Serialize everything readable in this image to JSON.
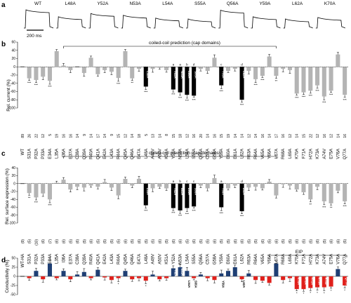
{
  "panel_a": {
    "label": "a",
    "traces": [
      "WT",
      "L48A",
      "Y52A",
      "N53A",
      "L54A",
      "S55A",
      "Q56A",
      "Y59A",
      "L62A",
      "K70A"
    ],
    "scale_label": "200 ms"
  },
  "panel_b": {
    "label": "b",
    "bracket_label": "coiled-coil prediction (cap domains)",
    "ylabel": "Rel. current (%)"
  },
  "panel_c": {
    "label": "c",
    "bracket_label": "coiled-coil prediction (cap domains)",
    "ylabel": "Rel. surface expression (%)"
  },
  "panel_d": {
    "label": "d",
    "bracket_label": "EIP",
    "ylabel": "Conductivity (%)"
  },
  "chart_data": [
    {
      "panel": "b",
      "type": "bar",
      "categories": [
        "WT",
        "S31A",
        "P32A",
        "P33A",
        "E34A",
        "L35A",
        "I36A",
        "E37A",
        "C38A",
        "Q39A",
        "R40A",
        "Q41A",
        "E42A",
        "L43A",
        "R44A",
        "Q45A",
        "Q46A",
        "E47A",
        "L48A",
        "A49V",
        "A50V",
        "K51A",
        "Y52A",
        "N53A",
        "L54A",
        "S55A",
        "Q56A",
        "C57A",
        "G58A",
        "Y59A",
        "E60A",
        "E61A",
        "L62A",
        "R63A",
        "R64A",
        "V65A",
        "Y66A",
        "L67A",
        "R68A",
        "L69A",
        "K70A",
        "F71A",
        "H72A",
        "K73A",
        "A74V",
        "E75A",
        "V76A",
        "Q77A"
      ],
      "values": [
        0,
        -28,
        -32,
        -24,
        -34,
        38,
        3,
        -8,
        0,
        -15,
        22,
        -18,
        -8,
        -12,
        -27,
        38,
        -28,
        -5,
        -48,
        -5,
        -2,
        -8,
        -55,
        -62,
        -68,
        -70,
        -5,
        -10,
        22,
        -45,
        -10,
        -5,
        -80,
        -10,
        -30,
        -22,
        25,
        -22,
        -5,
        -8,
        -65,
        -62,
        -58,
        -45,
        -72,
        -58,
        30,
        -68
      ],
      "highlighted": [
        "L48A",
        "Y52A",
        "N53A",
        "L54A",
        "S55A",
        "Y59A",
        "L62A"
      ],
      "letters": {
        "Y52A": "a",
        "N53A": "a",
        "L54A": "b",
        "S55A": "d",
        "Y59A": "c",
        "L62A": "d"
      },
      "significance": {
        "S31A": "***",
        "P32A": "***",
        "E34A": "***",
        "R44A": "***",
        "Q46A": "**",
        "L48A": "***",
        "Y52A": "***",
        "N53A": "***",
        "L54A": "***",
        "S55A": "***",
        "Y59A": "***",
        "L62A": "***",
        "R64A": "***",
        "V65A": "***",
        "L67A": "**",
        "K70A": "***",
        "F71A": "***",
        "H72A": "***",
        "K73A": "***",
        "A74V": "***",
        "E75A": "***",
        "Q77A": "***"
      },
      "n": [
        "89",
        "26",
        "22",
        "12",
        "5",
        "19",
        "16",
        "16",
        "14",
        "9",
        "14",
        "17",
        "14",
        "9",
        "15",
        "12",
        "14",
        "18",
        "5",
        "13",
        "14",
        "8",
        "15",
        "18",
        "12",
        "16",
        "20",
        "14",
        "16",
        "15",
        "19",
        "14",
        "14",
        "12",
        "14",
        "16",
        "14",
        "17",
        "16",
        "12",
        "14",
        "15",
        "22",
        "12",
        "16",
        "12",
        "14",
        "16"
      ],
      "ylim": [
        -100,
        60
      ],
      "yticks": [
        -100,
        -80,
        -60,
        -40,
        -20,
        0,
        20,
        40,
        60
      ],
      "ylabel": "Rel. current (%)"
    },
    {
      "panel": "c",
      "type": "bar",
      "categories": [
        "WT-HA",
        "S31A",
        "P32A",
        "P33A",
        "E34A",
        "L35A",
        "I36A",
        "E37A",
        "C38A",
        "Q39A",
        "R40A",
        "Q41A",
        "E42A",
        "L43A",
        "R44A",
        "Q45A",
        "Q46A",
        "E47A",
        "L48A",
        "A49V",
        "A50V",
        "K51A",
        "Y52A",
        "N53A",
        "L54A",
        "S55A",
        "Q56A",
        "C57A",
        "G58A",
        "Y59A",
        "E60A",
        "E61A",
        "L62A",
        "R63A",
        "R64A",
        "V65A",
        "Y66A",
        "L67A",
        "R68A",
        "L69A",
        "K70A",
        "F71A",
        "H72A",
        "K73A",
        "A74V",
        "E75A",
        "V76A",
        "Q77A"
      ],
      "values": [
        0,
        -24,
        -35,
        -25,
        -40,
        2,
        10,
        -15,
        -8,
        -10,
        -5,
        -8,
        4,
        -10,
        -30,
        12,
        -5,
        12,
        -55,
        -12,
        -8,
        -12,
        -62,
        -68,
        -62,
        -58,
        -5,
        -12,
        14,
        -60,
        -12,
        -5,
        -70,
        -10,
        -8,
        -12,
        5,
        -30,
        -2,
        -5,
        -15,
        -22,
        -40,
        -8,
        -45,
        -50,
        -18,
        -45
      ],
      "highlighted": [
        "L48A",
        "Y52A",
        "N53A",
        "L54A",
        "S55A",
        "Y59A",
        "L62A"
      ],
      "letters": {
        "Y52A": "a",
        "N53A": "b",
        "L54A": "c",
        "S55A": "c",
        "Y59A": "a",
        "L62A": "d"
      },
      "significance": {
        "S31A": "**",
        "P32A": "***",
        "E34A": "***",
        "L48A": "***",
        "Y52A": "***",
        "N53A": "***",
        "L54A": "***",
        "S55A": "***",
        "Y59A": "***",
        "L62A": "***",
        "H72A": "**",
        "A74V": "***",
        "E75A": "**",
        "Q77A": "***"
      },
      "n": [
        "(9)",
        "(5)",
        "(10)",
        "(6)",
        "(7)",
        "(6)",
        "(6)",
        "(5)",
        "(6)",
        "(5)",
        "(6)",
        "(5)",
        "(5)",
        "(5)",
        "(5)",
        "(6)",
        "(5)",
        "(6)",
        "(5)",
        "(5)",
        "(6)",
        "(5)",
        "(6)",
        "(6)",
        "(5)",
        "(6)",
        "(5)",
        "(5)",
        "(6)",
        "(5)",
        "(5)",
        "(6)",
        "(6)",
        "(5)",
        "(5)",
        "(6)",
        "(5)",
        "(6)",
        "(5)",
        "(5)",
        "(6)",
        "(5)",
        "(5)",
        "(6)",
        "(5)",
        "(6)",
        "(6)",
        "(5)"
      ],
      "ylim": [
        -100,
        60
      ],
      "yticks": [
        -100,
        -80,
        -60,
        -40,
        -20,
        0,
        20,
        40
      ],
      "ylabel": "Rel. surface expression (%)"
    },
    {
      "panel": "d",
      "type": "bar",
      "categories": [
        "WT",
        "S31A",
        "P32A",
        "P33A",
        "E34A",
        "L35A",
        "I36A",
        "E37A",
        "C38A",
        "Q39A",
        "R40A",
        "Q41A",
        "E42A",
        "L43A",
        "R44A",
        "Q45A",
        "Q46A",
        "E47A",
        "L48A",
        "A49V",
        "A50V",
        "K51A",
        "Y52A",
        "N53A",
        "L54A",
        "S55A",
        "Q56A",
        "C57A",
        "G58A",
        "Y59A",
        "E60A",
        "E61A",
        "L62A",
        "R63A",
        "R64A",
        "V65A",
        "Y66A",
        "L67A",
        "R68A",
        "L69A",
        "K70A",
        "F71A",
        "H72A",
        "K73A",
        "A74V",
        "E75A",
        "V76A",
        "Q77A"
      ],
      "values": [
        0,
        -5,
        15,
        -8,
        35,
        -5,
        15,
        -8,
        5,
        12,
        -5,
        18,
        -3,
        -10,
        -5,
        15,
        -8,
        -5,
        -12,
        5,
        -8,
        -5,
        22,
        25,
        15,
        -5,
        5,
        -5,
        -10,
        8,
        15,
        25,
        -8,
        8,
        -10,
        -12,
        -18,
        35,
        -10,
        -5,
        -35,
        -35,
        -32,
        -30,
        -30,
        -28,
        20,
        -25
      ],
      "bar_labels": {
        "Y52A": "Y52A",
        "N53A": "N53A",
        "L54A": "L54A",
        "S55A": "S55A",
        "Y59A": "Y59A",
        "L62A": "L62A",
        "K70A": "K70A",
        "F71A": "F71A",
        "H72A": "H72A",
        "K73A": "K73A",
        "A74V": "A74V",
        "Q77A": "Q77A"
      },
      "significance": {
        "E34A": "*",
        "R44A": "*",
        "L48A": "*",
        "K70A": "*",
        "F71A": "*",
        "H72A": "*",
        "K73A": "*",
        "A74V": "*",
        "E75A": "*",
        "Q77A": "*"
      },
      "positive_color": "#1f3f74",
      "negative_color": "#e0201b",
      "ylim": [
        -50,
        50
      ],
      "yticks": [
        -50,
        -25,
        0,
        25,
        50
      ],
      "ylabel": "Conductivity (%)"
    }
  ],
  "colors": {
    "gray_bar": "#b4b4b4",
    "highlight_bar": "#000000",
    "blue_bar": "#1f3f74",
    "red_bar": "#e0201b"
  }
}
